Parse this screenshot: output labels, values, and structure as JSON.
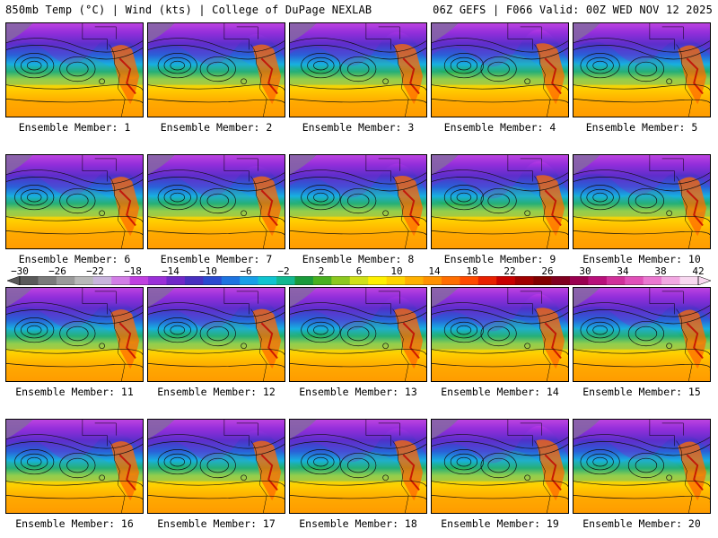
{
  "header": {
    "left": "850mb Temp (°C) | Wind (kts) | College of DuPage NEXLAB",
    "right": "06Z GEFS | F066 Valid: 00Z WED NOV 12 2025"
  },
  "panels": [
    {
      "label": "Ensemble Member: 1"
    },
    {
      "label": "Ensemble Member: 2"
    },
    {
      "label": "Ensemble Member: 3"
    },
    {
      "label": "Ensemble Member: 4"
    },
    {
      "label": "Ensemble Member: 5"
    },
    {
      "label": "Ensemble Member: 6"
    },
    {
      "label": "Ensemble Member: 7"
    },
    {
      "label": "Ensemble Member: 8"
    },
    {
      "label": "Ensemble Member: 9"
    },
    {
      "label": "Ensemble Member: 10"
    },
    {
      "label": "Ensemble Member: 11"
    },
    {
      "label": "Ensemble Member: 12"
    },
    {
      "label": "Ensemble Member: 13"
    },
    {
      "label": "Ensemble Member: 14"
    },
    {
      "label": "Ensemble Member: 15"
    },
    {
      "label": "Ensemble Member: 16"
    },
    {
      "label": "Ensemble Member: 17"
    },
    {
      "label": "Ensemble Member: 18"
    },
    {
      "label": "Ensemble Member: 19"
    },
    {
      "label": "Ensemble Member: 20"
    }
  ],
  "colorbar": {
    "min": -30,
    "max": 42,
    "ticks": [
      "-30",
      "-26",
      "-22",
      "-18",
      "-14",
      "-10",
      "-6",
      "-2",
      "2",
      "6",
      "10",
      "14",
      "18",
      "22",
      "26",
      "30",
      "34",
      "38",
      "42"
    ],
    "colors": [
      "#5a5a5a",
      "#7a7a7a",
      "#9a9a9a",
      "#b8b8b8",
      "#c8b4dc",
      "#d27ee6",
      "#c040e0",
      "#9a30d8",
      "#7028c8",
      "#4830c0",
      "#2a4ad0",
      "#1e74e0",
      "#18a0e8",
      "#10c4d0",
      "#12b890",
      "#1a9a3a",
      "#48b020",
      "#8cc820",
      "#d0e018",
      "#fff000",
      "#ffd400",
      "#ffb000",
      "#ff9200",
      "#ff6e00",
      "#ff4a00",
      "#e82000",
      "#c80000",
      "#a00000",
      "#820000",
      "#800020",
      "#9a0050",
      "#b8107a",
      "#d0309a",
      "#e050b8",
      "#ea78d0",
      "#f2a8e2",
      "#f8d8f0"
    ]
  }
}
